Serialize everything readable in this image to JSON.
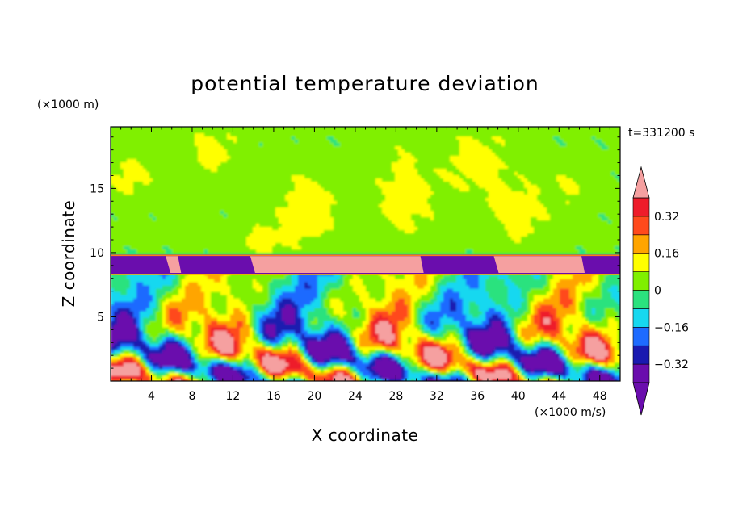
{
  "chart_data": {
    "type": "heatmap",
    "title": "potential temperature deviation",
    "xlabel": "X coordinate",
    "ylabel": "Z coordinate",
    "x_unit": "(×1000 m/s)",
    "y_unit": "(×1000 m)",
    "time_label": "t=331200 s",
    "xlim": [
      0,
      50
    ],
    "ylim": [
      0,
      19.8
    ],
    "xticks": [
      4,
      8,
      12,
      16,
      20,
      24,
      28,
      32,
      36,
      40,
      44,
      48
    ],
    "yticks": [
      5,
      10,
      15
    ],
    "grid": false,
    "legend": "right",
    "colorbar": {
      "levels": [
        -0.4,
        -0.32,
        -0.24,
        -0.16,
        -0.08,
        0,
        0.08,
        0.16,
        0.24,
        0.32,
        0.4
      ],
      "colors": [
        "#6a0dad",
        "#1a1ab0",
        "#1e6bff",
        "#17d8f0",
        "#2be27e",
        "#80f000",
        "#ffff00",
        "#ffa500",
        "#ff4a1c",
        "#ee1c2a"
      ],
      "under_color": "#6a0dad",
      "over_color": "#f5a0a0",
      "tick_labels": [
        "0.32",
        "0.16",
        "0",
        "−0.16",
        "−0.32"
      ],
      "tick_values": [
        0.32,
        0.16,
        0,
        -0.16,
        -0.32
      ]
    }
  }
}
